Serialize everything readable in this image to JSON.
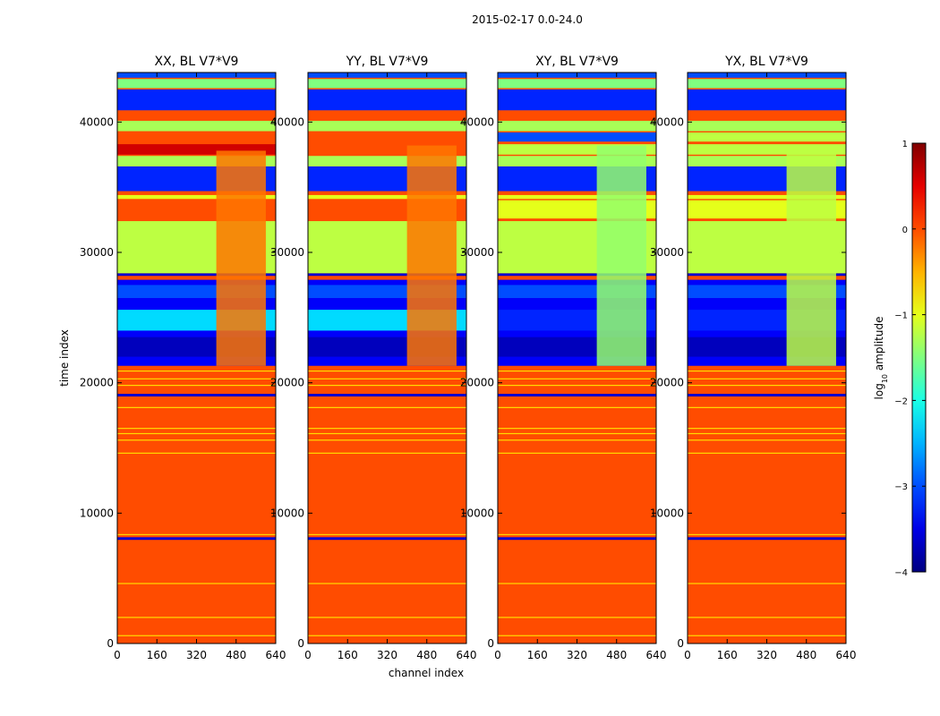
{
  "chart_data": {
    "type": "heatmap",
    "suptitle": "2015-02-17 0.0-24.0",
    "xlabel": "channel index",
    "ylabel": "time index",
    "xlim": [
      0,
      640
    ],
    "ylim": [
      0,
      43800
    ],
    "xticks": [
      "0",
      "160",
      "320",
      "480",
      "640"
    ],
    "yticks": [
      "0",
      "10000",
      "20000",
      "30000",
      "40000"
    ],
    "colorbar": {
      "label_base": "log",
      "label_sub": "10",
      "label_rest": " amplitude",
      "range": [
        -4,
        1
      ],
      "ticks": [
        "1",
        "0",
        "−1",
        "−2",
        "−3",
        "−4"
      ],
      "colormap": "jet"
    },
    "default_value": 0.0,
    "panels": [
      {
        "title": "XX, BL V7*V9",
        "bands": [
          {
            "y": [
              0,
              19000
            ],
            "v": 0.0
          },
          {
            "y": [
              7950,
              8150
            ],
            "v": -3.6
          },
          {
            "y": [
              18950,
              19150
            ],
            "v": -3.6
          },
          {
            "y": [
              21300,
              27900
            ],
            "v": -3.4
          },
          {
            "y": [
              22000,
              23500
            ],
            "v": -3.7
          },
          {
            "y": [
              24000,
              25600
            ],
            "v": -2.3
          },
          {
            "y": [
              26500,
              27500
            ],
            "v": -3.0
          },
          {
            "y": [
              28200,
              28400
            ],
            "v": -3.6
          },
          {
            "y": [
              28400,
              32400
            ],
            "v": -1.2
          },
          {
            "y": [
              32600,
              34000
            ],
            "v": 0.0
          },
          {
            "y": [
              34100,
              34400
            ],
            "v": -1.0
          },
          {
            "y": [
              34700,
              36600
            ],
            "v": -3.2
          },
          {
            "y": [
              36600,
              37400
            ],
            "v": -1.3
          },
          {
            "y": [
              37500,
              38300
            ],
            "v": 0.6
          },
          {
            "y": [
              38500,
              39200
            ],
            "v": 0.0
          },
          {
            "y": [
              39300,
              40100
            ],
            "v": -1.3
          },
          {
            "y": [
              40100,
              40700
            ],
            "v": 0.0
          },
          {
            "y": [
              40900,
              42500
            ],
            "v": -3.2
          },
          {
            "y": [
              42600,
              43300
            ],
            "v": -1.5
          },
          {
            "y": [
              43400,
              43800
            ],
            "v": -3.0
          }
        ],
        "notch": {
          "x": [
            400,
            600
          ],
          "y": [
            21300,
            37800
          ],
          "v": -0.2
        }
      },
      {
        "title": "YY, BL V7*V9",
        "bands": [
          {
            "y": [
              0,
              19000
            ],
            "v": 0.0
          },
          {
            "y": [
              7950,
              8150
            ],
            "v": -3.6
          },
          {
            "y": [
              18950,
              19150
            ],
            "v": -3.6
          },
          {
            "y": [
              21300,
              27900
            ],
            "v": -3.4
          },
          {
            "y": [
              22000,
              23500
            ],
            "v": -3.7
          },
          {
            "y": [
              24000,
              25600
            ],
            "v": -2.3
          },
          {
            "y": [
              26500,
              27500
            ],
            "v": -3.0
          },
          {
            "y": [
              28200,
              28400
            ],
            "v": -3.6
          },
          {
            "y": [
              28400,
              32400
            ],
            "v": -1.2
          },
          {
            "y": [
              32600,
              34000
            ],
            "v": 0.0
          },
          {
            "y": [
              34100,
              34400
            ],
            "v": -1.0
          },
          {
            "y": [
              34700,
              36600
            ],
            "v": -3.2
          },
          {
            "y": [
              36600,
              37400
            ],
            "v": -1.3
          },
          {
            "y": [
              37500,
              38300
            ],
            "v": 0.0
          },
          {
            "y": [
              38500,
              39200
            ],
            "v": 0.0
          },
          {
            "y": [
              39300,
              40100
            ],
            "v": -1.3
          },
          {
            "y": [
              40100,
              40700
            ],
            "v": 0.0
          },
          {
            "y": [
              40900,
              42500
            ],
            "v": -3.2
          },
          {
            "y": [
              42600,
              43300
            ],
            "v": -1.5
          },
          {
            "y": [
              43400,
              43800
            ],
            "v": -3.0
          }
        ],
        "notch": {
          "x": [
            400,
            600
          ],
          "y": [
            21300,
            38200
          ],
          "v": -0.2
        }
      },
      {
        "title": "XY, BL V7*V9",
        "bands": [
          {
            "y": [
              0,
              19000
            ],
            "v": 0.0
          },
          {
            "y": [
              7950,
              8150
            ],
            "v": -3.6
          },
          {
            "y": [
              18950,
              19150
            ],
            "v": -3.6
          },
          {
            "y": [
              21300,
              27900
            ],
            "v": -3.4
          },
          {
            "y": [
              22000,
              23500
            ],
            "v": -3.7
          },
          {
            "y": [
              24000,
              25600
            ],
            "v": -3.2
          },
          {
            "y": [
              26500,
              27500
            ],
            "v": -3.0
          },
          {
            "y": [
              28200,
              28400
            ],
            "v": -3.6
          },
          {
            "y": [
              28400,
              32400
            ],
            "v": -1.2
          },
          {
            "y": [
              32600,
              34000
            ],
            "v": -1.0
          },
          {
            "y": [
              34100,
              34400
            ],
            "v": -1.0
          },
          {
            "y": [
              34700,
              36600
            ],
            "v": -3.2
          },
          {
            "y": [
              36600,
              37400
            ],
            "v": -1.3
          },
          {
            "y": [
              37500,
              38300
            ],
            "v": -1.2
          },
          {
            "y": [
              38500,
              39200
            ],
            "v": -3.0
          },
          {
            "y": [
              39300,
              40100
            ],
            "v": -1.3
          },
          {
            "y": [
              40100,
              40700
            ],
            "v": 0.0
          },
          {
            "y": [
              40900,
              42500
            ],
            "v": -3.2
          },
          {
            "y": [
              42600,
              43300
            ],
            "v": -1.5
          },
          {
            "y": [
              43400,
              43800
            ],
            "v": -3.0
          }
        ],
        "notch": {
          "x": [
            400,
            600
          ],
          "y": [
            21300,
            38200
          ],
          "v": -1.4
        }
      },
      {
        "title": "YX, BL V7*V9",
        "bands": [
          {
            "y": [
              0,
              19000
            ],
            "v": 0.0
          },
          {
            "y": [
              7950,
              8150
            ],
            "v": -3.6
          },
          {
            "y": [
              18950,
              19150
            ],
            "v": -3.6
          },
          {
            "y": [
              21300,
              27900
            ],
            "v": -3.4
          },
          {
            "y": [
              22000,
              23500
            ],
            "v": -3.7
          },
          {
            "y": [
              24000,
              25600
            ],
            "v": -3.2
          },
          {
            "y": [
              26500,
              27500
            ],
            "v": -3.0
          },
          {
            "y": [
              28200,
              28400
            ],
            "v": -3.6
          },
          {
            "y": [
              28400,
              32400
            ],
            "v": -1.2
          },
          {
            "y": [
              32600,
              34000
            ],
            "v": -1.0
          },
          {
            "y": [
              34100,
              34400
            ],
            "v": -1.0
          },
          {
            "y": [
              34700,
              36600
            ],
            "v": -3.2
          },
          {
            "y": [
              36600,
              37400
            ],
            "v": -1.3
          },
          {
            "y": [
              37500,
              38300
            ],
            "v": -1.2
          },
          {
            "y": [
              38500,
              39200
            ],
            "v": -1.2
          },
          {
            "y": [
              39300,
              40100
            ],
            "v": -1.3
          },
          {
            "y": [
              40100,
              40700
            ],
            "v": 0.0
          },
          {
            "y": [
              40900,
              42500
            ],
            "v": -3.2
          },
          {
            "y": [
              42600,
              43300
            ],
            "v": -1.5
          },
          {
            "y": [
              43400,
              43800
            ],
            "v": -3.0
          }
        ],
        "notch": {
          "x": [
            400,
            600
          ],
          "y": [
            21300,
            38200
          ],
          "v": -1.2
        }
      }
    ],
    "thin_lines": [
      {
        "y": 600,
        "v": -0.7
      },
      {
        "y": 2000,
        "v": -0.7
      },
      {
        "y": 4600,
        "v": -0.7
      },
      {
        "y": 8350,
        "v": -0.7
      },
      {
        "y": 14600,
        "v": -0.7
      },
      {
        "y": 15600,
        "v": -0.7
      },
      {
        "y": 16100,
        "v": -0.7
      },
      {
        "y": 16500,
        "v": -0.7
      },
      {
        "y": 18100,
        "v": -0.7
      },
      {
        "y": 19800,
        "v": -0.7
      },
      {
        "y": 20300,
        "v": -0.7
      },
      {
        "y": 20900,
        "v": -0.7
      }
    ]
  }
}
